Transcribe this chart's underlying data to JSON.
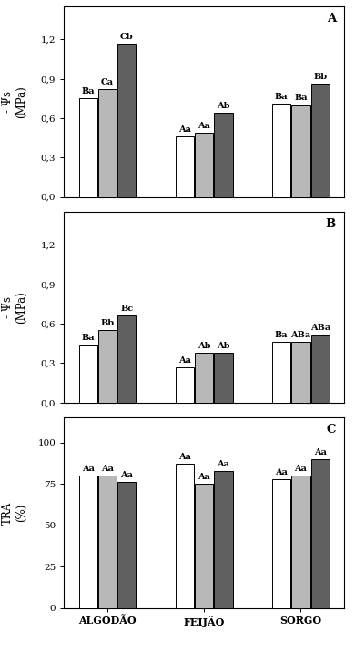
{
  "panel_A": {
    "label": "A",
    "ylabel1": "- Ψs",
    "ylabel2": "(MPa)",
    "ylim": [
      0.0,
      1.45
    ],
    "yticks": [
      0.0,
      0.3,
      0.6,
      0.9,
      1.2
    ],
    "ytick_labels": [
      "0,0",
      "0,3",
      "0,6",
      "0,9",
      "1,2"
    ],
    "groups": [
      "ALGODÃO",
      "FEIJÃO",
      "SORGO"
    ],
    "values": [
      [
        0.75,
        0.82,
        1.17
      ],
      [
        0.46,
        0.49,
        0.64
      ],
      [
        0.71,
        0.7,
        0.86
      ]
    ],
    "annotations": [
      [
        "Ba",
        "Ca",
        "Cb"
      ],
      [
        "Aa",
        "Aa",
        "Ab"
      ],
      [
        "Ba",
        "Ba",
        "Bb"
      ]
    ]
  },
  "panel_B": {
    "label": "B",
    "ylabel1": "- Ψs",
    "ylabel2": "(MPa)",
    "ylim": [
      0.0,
      1.45
    ],
    "yticks": [
      0.0,
      0.3,
      0.6,
      0.9,
      1.2
    ],
    "ytick_labels": [
      "0,0",
      "0,3",
      "0,6",
      "0,9",
      "1,2"
    ],
    "groups": [
      "ALGODÃO",
      "FEIJÃO",
      "SORGO"
    ],
    "values": [
      [
        0.44,
        0.55,
        0.66
      ],
      [
        0.27,
        0.38,
        0.38
      ],
      [
        0.46,
        0.46,
        0.52
      ]
    ],
    "annotations": [
      [
        "Ba",
        "Bb",
        "Bc"
      ],
      [
        "Aa",
        "Ab",
        "Ab"
      ],
      [
        "Ba",
        "ABa",
        "ABa"
      ]
    ]
  },
  "panel_C": {
    "label": "C",
    "ylabel1": "TRA",
    "ylabel2": "(%)",
    "ylim": [
      0,
      115
    ],
    "yticks": [
      0,
      25,
      50,
      75,
      100
    ],
    "ytick_labels": [
      "0",
      "25",
      "50",
      "75",
      "100"
    ],
    "groups": [
      "ALGODÃO",
      "FEIJÃO",
      "SORGO"
    ],
    "values": [
      [
        80,
        80,
        76
      ],
      [
        87,
        75,
        83
      ],
      [
        78,
        80,
        90
      ]
    ],
    "annotations": [
      [
        "Aa",
        "Aa",
        "Aa"
      ],
      [
        "Aa",
        "Aa",
        "Aa"
      ],
      [
        "Aa",
        "Aa",
        "Aa"
      ]
    ]
  },
  "bar_colors": [
    "#ffffff",
    "#b8b8b8",
    "#606060"
  ],
  "bar_edgecolor": "#000000",
  "bar_width": 0.2,
  "annot_fontsize": 7.0,
  "tick_fontsize": 7.5,
  "label_fontsize": 8.5,
  "panel_label_fontsize": 9.5,
  "xtick_fontsize": 8.0
}
